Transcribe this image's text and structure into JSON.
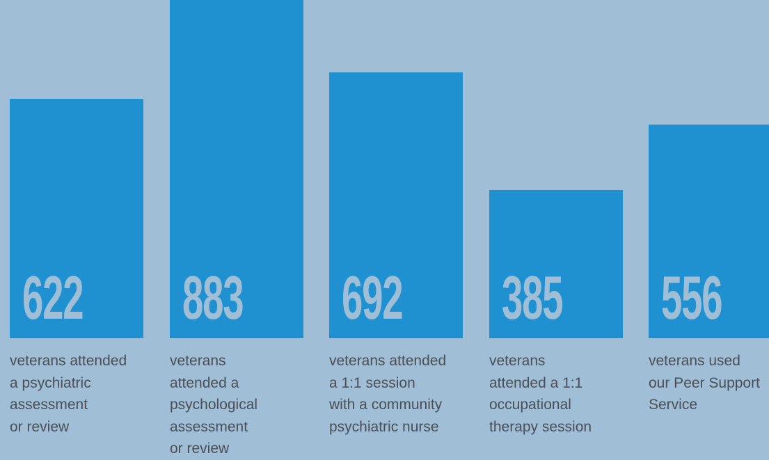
{
  "colors": {
    "background": "#a0bed6",
    "bar": "#1f91d1",
    "value_text": "#a0bed6",
    "label_text": "#4a4f57"
  },
  "chart_data": {
    "type": "bar",
    "title": "",
    "xlabel": "",
    "ylabel": "",
    "ylim": [
      0,
      900
    ],
    "grid": false,
    "categories": [
      "veterans attended a psychiatric assessment or review",
      "veterans attended a psychological assessment or review",
      "veterans attended a 1:1 session with a community psychiatric nurse",
      "veterans attended a 1:1 occupational therapy session",
      "veterans used our Peer Support Service"
    ],
    "values": [
      622,
      883,
      692,
      385,
      556
    ],
    "data_labels": [
      "622",
      "883",
      "692",
      "385",
      "556"
    ],
    "category_lines": [
      [
        "veterans attended",
        "a psychiatric",
        "assessment",
        "or review"
      ],
      [
        "veterans",
        "attended a",
        "psychological",
        "assessment",
        "or review"
      ],
      [
        "veterans attended",
        "a 1:1 session",
        "with a community",
        "psychiatric nurse"
      ],
      [
        "veterans",
        "attended a 1:1",
        "occupational",
        "therapy session"
      ],
      [
        "veterans used",
        "our Peer Support",
        "Service"
      ]
    ]
  }
}
